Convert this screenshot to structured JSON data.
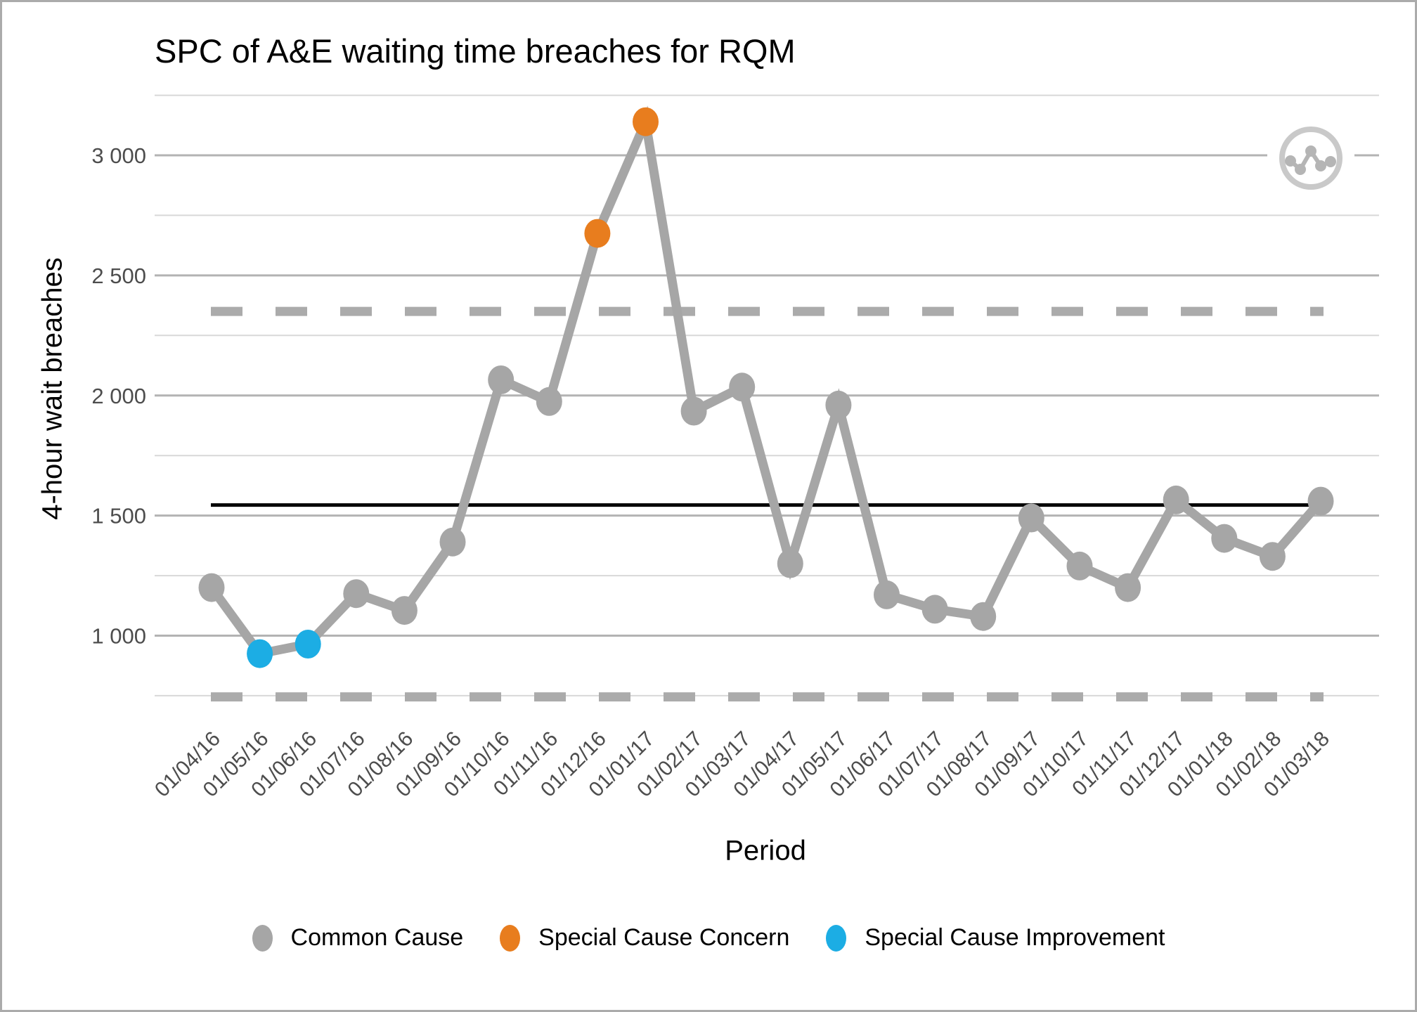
{
  "window": {
    "background": "#ffffff",
    "border_color": "#ababab"
  },
  "chart_data": {
    "type": "line",
    "title": "SPC of A&E waiting time breaches for RQM",
    "x_label": "Period",
    "y_label": "4-hour wait breaches",
    "categories": [
      "01/04/16",
      "01/05/16",
      "01/06/16",
      "01/07/16",
      "01/08/16",
      "01/09/16",
      "01/10/16",
      "01/11/16",
      "01/12/16",
      "01/01/17",
      "01/02/17",
      "01/03/17",
      "01/04/17",
      "01/05/17",
      "01/06/17",
      "01/07/17",
      "01/08/17",
      "01/09/17",
      "01/10/17",
      "01/11/17",
      "01/12/17",
      "01/01/18",
      "01/02/18",
      "01/03/18"
    ],
    "series": [
      {
        "name": "4-hour wait breaches",
        "values": [
          1200,
          925,
          965,
          1175,
          1105,
          1390,
          2065,
          1975,
          2675,
          3140,
          1935,
          2035,
          1300,
          1960,
          1170,
          1110,
          1080,
          1490,
          1290,
          1200,
          1565,
          1405,
          1330,
          1560
        ],
        "point_types": [
          "common",
          "improvement",
          "improvement",
          "common",
          "common",
          "common",
          "common",
          "common",
          "concern",
          "concern",
          "common",
          "common",
          "common",
          "common",
          "common",
          "common",
          "common",
          "common",
          "common",
          "common",
          "common",
          "common",
          "common",
          "common"
        ]
      }
    ],
    "center_line_mean": 1544,
    "upper_control_limit": 2350,
    "lower_control_limit": 745,
    "y_ticks": [
      {
        "value": 1000,
        "label": "1 000"
      },
      {
        "value": 1500,
        "label": "1 500"
      },
      {
        "value": 2000,
        "label": "2 000"
      },
      {
        "value": 2500,
        "label": "2 500"
      },
      {
        "value": 3000,
        "label": "3 000"
      }
    ],
    "y_minor_ticks": [
      750,
      1250,
      1750,
      2250,
      2750,
      3250
    ],
    "ylim": [
      610,
      3290
    ],
    "grid": "horizontal-only",
    "legend_position": "bottom",
    "legend": [
      {
        "label": "Common Cause",
        "color_key": "common"
      },
      {
        "label": "Special Cause Concern",
        "color_key": "concern"
      },
      {
        "label": "Special Cause Improvement",
        "color_key": "improvement"
      }
    ],
    "colors": {
      "common": "#A6A6A6",
      "concern": "#E87D1E",
      "improvement": "#1CADE4",
      "series_line": "#A6A6A6",
      "mean_line": "#000000",
      "limit_line": "#ABABAB",
      "grid_major": "#B3B3B3",
      "grid_minor": "#D8D8D8",
      "tick_text": "#4D4D4D"
    }
  },
  "icon": {
    "name": "run-chart-icon"
  }
}
